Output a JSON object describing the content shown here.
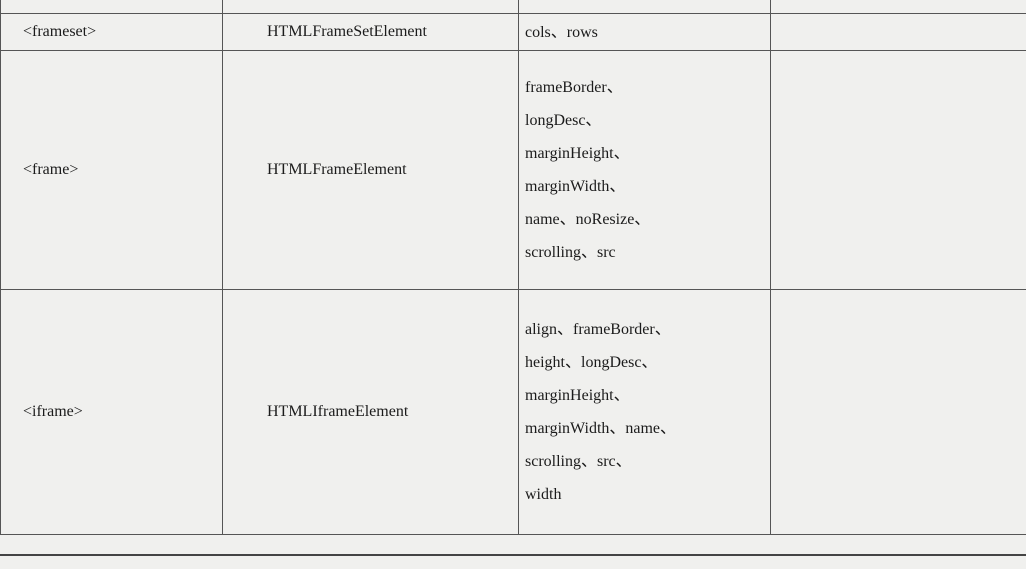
{
  "table": {
    "rows": [
      {
        "tag": "<frameset>",
        "interface": "HTMLFrameSetElement",
        "attributes": [
          "cols、rows"
        ]
      },
      {
        "tag": "<frame>",
        "interface": "HTMLFrameElement",
        "attributes": [
          "frameBorder、",
          "longDesc、",
          "marginHeight、",
          "marginWidth、",
          "name、noResize、",
          "scrolling、src"
        ]
      },
      {
        "tag": "<iframe>",
        "interface": "HTMLIframeElement",
        "attributes": [
          "align、frameBorder、",
          "height、longDesc、",
          "marginHeight、",
          "marginWidth、name、",
          "scrolling、src、",
          "width"
        ]
      }
    ]
  }
}
